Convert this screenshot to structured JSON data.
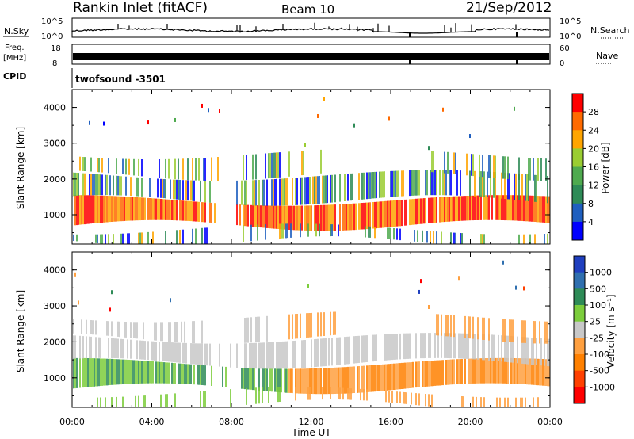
{
  "header": {
    "station": "Rankin Inlet (fitACF)",
    "beam": "Beam 10",
    "date": "21/Sep/2012"
  },
  "strips": {
    "nsky": {
      "label": "N.Sky",
      "ticks": [
        "10^5",
        "10^0"
      ]
    },
    "nsearch": {
      "label": "N.Search",
      "ticks": [
        "10^5",
        "10^0"
      ]
    },
    "freq": {
      "label_line1": "Freq.",
      "label_line2": "[MHz]",
      "ticks": [
        "18",
        "8"
      ]
    },
    "nave": {
      "label": "Nave",
      "ticks": [
        "60",
        "0"
      ]
    },
    "cpid": {
      "label": "CPID",
      "value": "twofsound -3501"
    }
  },
  "chart_data": [
    {
      "type": "heatmap",
      "parameter": "power",
      "ylabel": "Slant Range [km]",
      "ylim": [
        180,
        4500
      ],
      "yticks": [
        "1000",
        "2000",
        "3000",
        "4000"
      ],
      "xlim": [
        "00:00",
        "24:00"
      ],
      "colorbar": {
        "label": "Power [dB]",
        "ticks": [
          "4",
          "8",
          "12",
          "16",
          "20",
          "24",
          "28"
        ],
        "colors": [
          "#0000ff",
          "#1f5fbf",
          "#2e8b57",
          "#4faa4f",
          "#9acd32",
          "#ffa500",
          "#ff6a00",
          "#ff0000"
        ]
      }
    },
    {
      "type": "heatmap",
      "parameter": "velocity",
      "ylabel": "Slant Range [km]",
      "ylim": [
        180,
        4500
      ],
      "yticks": [
        "1000",
        "2000",
        "3000",
        "4000"
      ],
      "xlim": [
        "00:00",
        "24:00"
      ],
      "colorbar": {
        "label": "Velocity [m s⁻¹]",
        "ticks": [
          "1000",
          "500",
          "100",
          "25",
          "-25",
          "-100",
          "-500",
          "-1000"
        ],
        "colors": [
          "#1f3fbf",
          "#2f6faf",
          "#2e8b57",
          "#7ccd3c",
          "#c8c8c8",
          "#ffa040",
          "#ff8000",
          "#ff4000",
          "#ff0000"
        ]
      }
    }
  ],
  "x_axis": {
    "ticks": [
      "00:00",
      "04:00",
      "08:00",
      "12:00",
      "16:00",
      "20:00",
      "00:00"
    ],
    "label": "Time UT"
  },
  "colors": {
    "power": [
      "#0000ff",
      "#1f5fbf",
      "#2e8b57",
      "#4faa4f",
      "#9acd32",
      "#ffa500",
      "#ff6a00",
      "#ff0000"
    ],
    "velocity": [
      "#1f3fbf",
      "#2f6faf",
      "#2e8b57",
      "#7ccd3c",
      "#c8c8c8",
      "#ffa040",
      "#ff8000",
      "#ff4000",
      "#ff0000"
    ]
  }
}
